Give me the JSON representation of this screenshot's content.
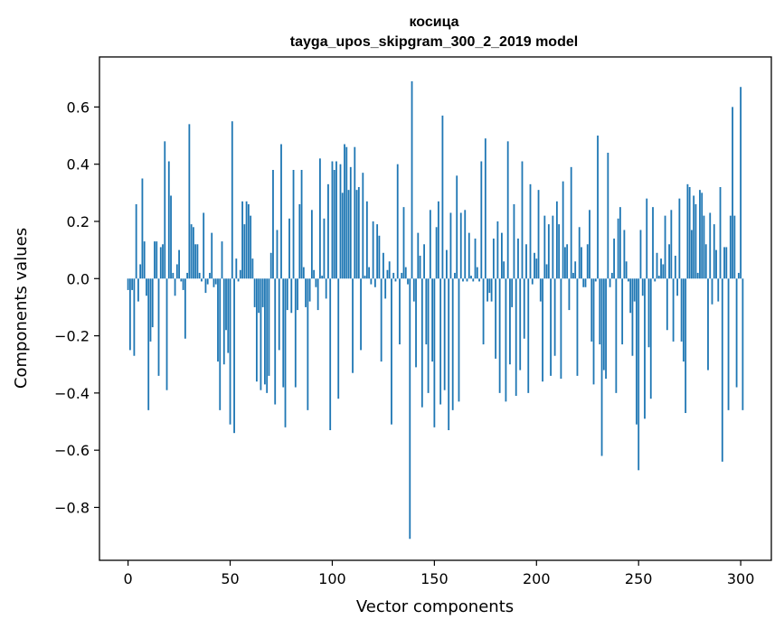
{
  "chart_data": {
    "type": "bar",
    "title": "косица",
    "subtitle": "tayga_upos_skipgram_300_2_2019 model",
    "xlabel": "Vector components",
    "ylabel": "Components values",
    "xlim": [
      -14,
      315
    ],
    "ylim": [
      -0.985,
      0.775
    ],
    "xticks": [
      0,
      50,
      100,
      150,
      200,
      250,
      300
    ],
    "xtick_labels": [
      "0",
      "50",
      "100",
      "150",
      "200",
      "250",
      "300"
    ],
    "yticks": [
      -0.8,
      -0.6,
      -0.4,
      -0.2,
      0.0,
      0.2,
      0.4,
      0.6
    ],
    "ytick_labels": [
      "−0.8",
      "−0.6",
      "−0.4",
      "−0.2",
      "0.0",
      "0.2",
      "0.4",
      "0.6"
    ],
    "bar_color": "#1f77b4",
    "grid": false,
    "values": [
      -0.04,
      -0.25,
      -0.04,
      -0.27,
      0.26,
      -0.08,
      0.05,
      0.35,
      0.13,
      -0.06,
      -0.46,
      -0.22,
      -0.17,
      0.13,
      0.13,
      -0.34,
      0.11,
      0.12,
      0.48,
      -0.39,
      0.41,
      0.29,
      0.02,
      -0.06,
      0.05,
      0.1,
      -0.01,
      -0.04,
      -0.21,
      0.02,
      0.54,
      0.19,
      0.18,
      0.12,
      0.12,
      0.02,
      -0.01,
      0.23,
      -0.05,
      -0.02,
      0.02,
      0.16,
      -0.03,
      -0.02,
      -0.29,
      -0.46,
      0.13,
      -0.3,
      -0.18,
      -0.26,
      -0.51,
      0.55,
      -0.54,
      0.07,
      -0.01,
      0.03,
      0.27,
      0.19,
      0.27,
      0.26,
      0.22,
      0.07,
      -0.1,
      -0.36,
      -0.12,
      -0.39,
      -0.1,
      -0.37,
      -0.4,
      -0.34,
      0.09,
      0.38,
      -0.44,
      0.17,
      -0.25,
      0.47,
      -0.38,
      -0.52,
      -0.11,
      0.21,
      -0.12,
      0.38,
      -0.38,
      -0.11,
      0.26,
      0.38,
      0.04,
      -0.1,
      -0.46,
      -0.08,
      0.24,
      0.03,
      -0.03,
      -0.11,
      0.42,
      0.01,
      0.21,
      -0.07,
      0.33,
      -0.53,
      0.41,
      0.38,
      0.41,
      -0.42,
      0.4,
      0.3,
      0.47,
      0.46,
      0.31,
      0.39,
      -0.33,
      0.46,
      0.31,
      0.32,
      -0.25,
      0.37,
      0.01,
      0.27,
      0.04,
      -0.02,
      0.2,
      -0.03,
      0.19,
      0.15,
      -0.29,
      0.09,
      -0.07,
      0.03,
      0.06,
      -0.51,
      0.02,
      -0.01,
      0.4,
      -0.23,
      0.02,
      0.25,
      0.04,
      -0.02,
      -0.91,
      0.69,
      -0.08,
      -0.31,
      0.16,
      0.08,
      -0.45,
      0.12,
      -0.23,
      -0.4,
      0.24,
      -0.29,
      -0.52,
      0.18,
      0.27,
      -0.44,
      0.57,
      -0.39,
      0.1,
      -0.53,
      0.23,
      -0.46,
      0.02,
      0.36,
      -0.43,
      0.23,
      -0.01,
      0.24,
      -0.01,
      0.16,
      0.01,
      -0.01,
      0.14,
      0.04,
      -0.01,
      0.41,
      -0.23,
      0.49,
      -0.08,
      -0.05,
      -0.08,
      0.14,
      -0.28,
      0.2,
      -0.4,
      0.16,
      0.06,
      -0.43,
      0.48,
      -0.3,
      -0.1,
      0.26,
      -0.41,
      0.14,
      -0.32,
      0.41,
      -0.21,
      0.12,
      -0.4,
      0.33,
      -0.02,
      0.09,
      0.07,
      0.31,
      -0.08,
      -0.36,
      0.22,
      0.05,
      0.19,
      -0.34,
      0.22,
      -0.27,
      0.27,
      0.19,
      -0.35,
      0.34,
      0.11,
      0.12,
      -0.11,
      0.39,
      0.02,
      0.06,
      -0.34,
      0.18,
      0.11,
      -0.03,
      -0.03,
      0.12,
      0.24,
      -0.22,
      -0.37,
      -0.01,
      0.5,
      -0.23,
      -0.62,
      -0.32,
      -0.35,
      0.44,
      -0.03,
      0.02,
      0.14,
      -0.4,
      0.21,
      0.25,
      -0.23,
      0.17,
      0.06,
      -0.01,
      -0.12,
      -0.27,
      -0.08,
      -0.51,
      -0.67,
      0.17,
      -0.06,
      -0.49,
      0.28,
      -0.24,
      -0.42,
      0.25,
      -0.01,
      0.09,
      0.01,
      0.07,
      0.05,
      0.22,
      -0.18,
      0.12,
      0.24,
      -0.22,
      0.08,
      -0.06,
      0.28,
      -0.22,
      -0.29,
      -0.47,
      0.33,
      0.32,
      0.17,
      0.29,
      0.26,
      0.02,
      0.31,
      0.3,
      0.22,
      0.12,
      -0.32,
      0.23,
      -0.09,
      0.19,
      0.1,
      -0.08,
      0.32,
      -0.64,
      0.11,
      0.11,
      -0.46,
      0.22,
      0.6,
      0.22,
      -0.38,
      0.02,
      0.67,
      -0.46
    ]
  }
}
